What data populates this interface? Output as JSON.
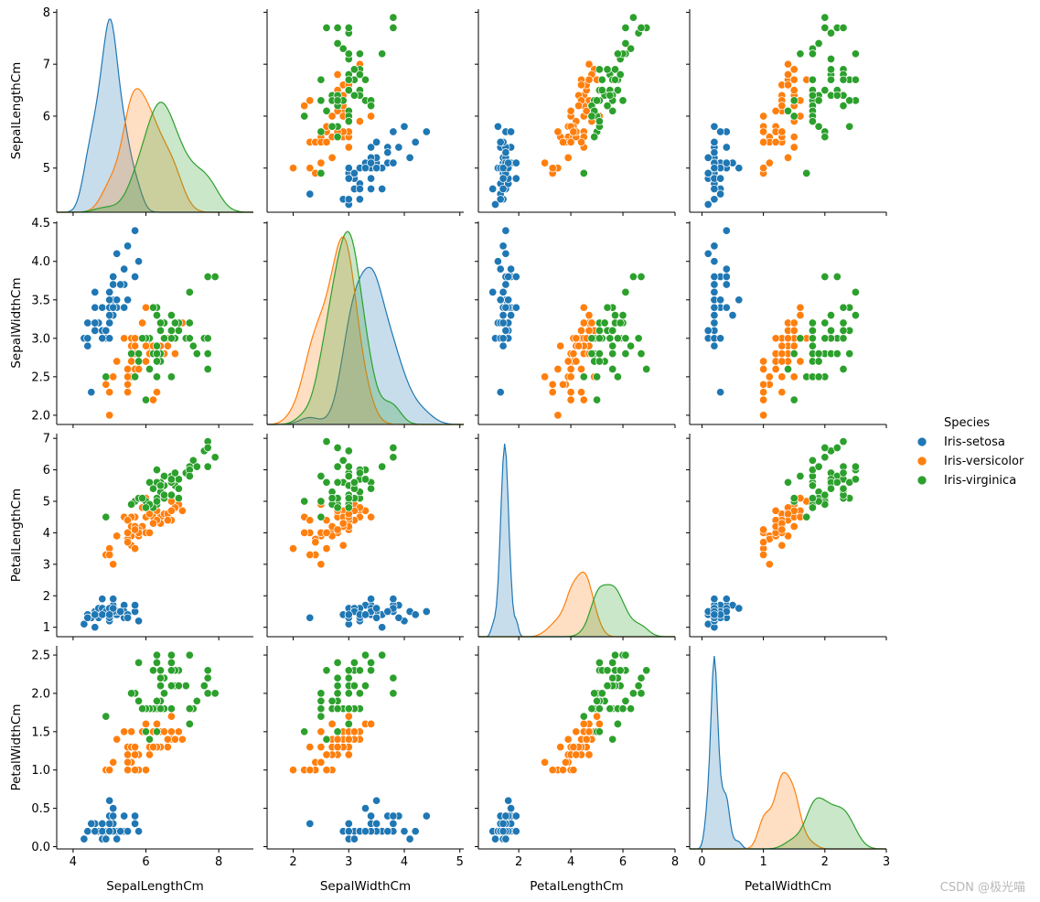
{
  "chart_data": {
    "type": "pairplot",
    "variables": [
      "SepalLengthCm",
      "SepalWidthCm",
      "PetalLengthCm",
      "PetalWidthCm"
    ],
    "var_labels": [
      "SepalLengthCm",
      "SepalWidthCm",
      "PetalLengthCm",
      "PetalWidthCm"
    ],
    "hue": "Species",
    "legend": {
      "title": "Species",
      "position": "right",
      "entries": [
        {
          "label": "Iris-setosa",
          "color": "#1f77b4"
        },
        {
          "label": "Iris-versicolor",
          "color": "#ff7f0e"
        },
        {
          "label": "Iris-virginica",
          "color": "#2ca02c"
        }
      ]
    },
    "x_ticks": [
      [
        "4",
        "6",
        "8"
      ],
      [
        "2",
        "3",
        "4",
        "5"
      ],
      [
        "2",
        "4",
        "6",
        "8"
      ],
      [
        "0",
        "1",
        "2",
        "3"
      ]
    ],
    "y_ticks": [
      [
        "5",
        "6",
        "7",
        "8"
      ],
      [
        "2.0",
        "2.5",
        "3.0",
        "3.5",
        "4.0",
        "4.5"
      ],
      [
        "1",
        "2",
        "3",
        "4",
        "5",
        "6",
        "7"
      ],
      [
        "0.0",
        "0.5",
        "1.0",
        "1.5",
        "2.0",
        "2.5"
      ]
    ],
    "ranges": [
      [
        3.55,
        8.95
      ],
      [
        1.53,
        5.07
      ],
      [
        0.45,
        8.0
      ],
      [
        -0.2,
        3.0
      ]
    ],
    "y_ranges": [
      [
        4.15,
        8.06
      ],
      [
        1.88,
        4.52
      ],
      [
        0.7,
        7.15
      ],
      [
        -0.03,
        2.62
      ]
    ],
    "diag_peaks": [
      [
        {
          "species": "Iris-setosa",
          "mode": 5.0,
          "peak_fraction": 1.0
        },
        {
          "species": "Iris-versicolor",
          "mode": 5.8,
          "peak_fraction": 0.76
        },
        {
          "species": "Iris-virginica",
          "mode": 6.45,
          "peak_fraction": 0.72
        }
      ],
      [
        {
          "species": "Iris-setosa",
          "mode": 3.4,
          "peak_fraction": 0.85
        },
        {
          "species": "Iris-versicolor",
          "mode": 2.9,
          "peak_fraction": 0.97
        },
        {
          "species": "Iris-virginica",
          "mode": 3.0,
          "peak_fraction": 1.0
        }
      ],
      [
        {
          "species": "Iris-setosa",
          "mode": 1.45,
          "peak_fraction": 1.0
        },
        {
          "species": "Iris-versicolor",
          "mode": 4.45,
          "peak_fraction": 0.28
        },
        {
          "species": "Iris-virginica",
          "mode": 5.45,
          "peak_fraction": 0.24
        }
      ],
      [
        {
          "species": "Iris-setosa",
          "mode": 0.22,
          "peak_fraction": 1.0
        },
        {
          "species": "Iris-versicolor",
          "mode": 1.3,
          "peak_fraction": 0.38
        },
        {
          "species": "Iris-virginica",
          "mode": 2.0,
          "peak_fraction": 0.27
        }
      ]
    ],
    "data": {
      "Iris-setosa": [
        [
          5.1,
          3.5,
          1.4,
          0.2
        ],
        [
          4.9,
          3.0,
          1.4,
          0.2
        ],
        [
          4.7,
          3.2,
          1.3,
          0.2
        ],
        [
          4.6,
          3.1,
          1.5,
          0.2
        ],
        [
          5.0,
          3.6,
          1.4,
          0.2
        ],
        [
          5.4,
          3.9,
          1.7,
          0.4
        ],
        [
          4.6,
          3.4,
          1.4,
          0.3
        ],
        [
          5.0,
          3.4,
          1.5,
          0.2
        ],
        [
          4.4,
          2.9,
          1.4,
          0.2
        ],
        [
          4.9,
          3.1,
          1.5,
          0.1
        ],
        [
          5.4,
          3.7,
          1.5,
          0.2
        ],
        [
          4.8,
          3.4,
          1.6,
          0.2
        ],
        [
          4.8,
          3.0,
          1.4,
          0.1
        ],
        [
          4.3,
          3.0,
          1.1,
          0.1
        ],
        [
          5.8,
          4.0,
          1.2,
          0.2
        ],
        [
          5.7,
          4.4,
          1.5,
          0.4
        ],
        [
          5.4,
          3.9,
          1.3,
          0.4
        ],
        [
          5.1,
          3.5,
          1.4,
          0.3
        ],
        [
          5.7,
          3.8,
          1.7,
          0.3
        ],
        [
          5.1,
          3.8,
          1.5,
          0.3
        ],
        [
          5.4,
          3.4,
          1.7,
          0.2
        ],
        [
          5.1,
          3.7,
          1.5,
          0.4
        ],
        [
          4.6,
          3.6,
          1.0,
          0.2
        ],
        [
          5.1,
          3.3,
          1.7,
          0.5
        ],
        [
          4.8,
          3.4,
          1.9,
          0.2
        ],
        [
          5.0,
          3.0,
          1.6,
          0.2
        ],
        [
          5.0,
          3.4,
          1.6,
          0.4
        ],
        [
          5.2,
          3.5,
          1.5,
          0.2
        ],
        [
          5.2,
          3.4,
          1.4,
          0.2
        ],
        [
          4.7,
          3.2,
          1.6,
          0.2
        ],
        [
          4.8,
          3.1,
          1.6,
          0.2
        ],
        [
          5.4,
          3.4,
          1.5,
          0.4
        ],
        [
          5.2,
          4.1,
          1.5,
          0.1
        ],
        [
          5.5,
          4.2,
          1.4,
          0.2
        ],
        [
          4.9,
          3.1,
          1.5,
          0.1
        ],
        [
          5.0,
          3.2,
          1.2,
          0.2
        ],
        [
          5.5,
          3.5,
          1.3,
          0.2
        ],
        [
          4.9,
          3.1,
          1.5,
          0.1
        ],
        [
          4.4,
          3.0,
          1.3,
          0.2
        ],
        [
          5.1,
          3.4,
          1.5,
          0.2
        ],
        [
          5.0,
          3.5,
          1.3,
          0.3
        ],
        [
          4.5,
          2.3,
          1.3,
          0.3
        ],
        [
          4.4,
          3.2,
          1.3,
          0.2
        ],
        [
          5.0,
          3.5,
          1.6,
          0.6
        ],
        [
          5.1,
          3.8,
          1.9,
          0.4
        ],
        [
          4.8,
          3.0,
          1.4,
          0.3
        ],
        [
          5.1,
          3.8,
          1.6,
          0.2
        ],
        [
          4.6,
          3.2,
          1.4,
          0.2
        ],
        [
          5.3,
          3.7,
          1.5,
          0.2
        ],
        [
          5.0,
          3.3,
          1.4,
          0.2
        ]
      ],
      "Iris-versicolor": [
        [
          7.0,
          3.2,
          4.7,
          1.4
        ],
        [
          6.4,
          3.2,
          4.5,
          1.5
        ],
        [
          6.9,
          3.1,
          4.9,
          1.5
        ],
        [
          5.5,
          2.3,
          4.0,
          1.3
        ],
        [
          6.5,
          2.8,
          4.6,
          1.5
        ],
        [
          5.7,
          2.8,
          4.5,
          1.3
        ],
        [
          6.3,
          3.3,
          4.7,
          1.6
        ],
        [
          4.9,
          2.4,
          3.3,
          1.0
        ],
        [
          6.6,
          2.9,
          4.6,
          1.3
        ],
        [
          5.2,
          2.7,
          3.9,
          1.4
        ],
        [
          5.0,
          2.0,
          3.5,
          1.0
        ],
        [
          5.9,
          3.0,
          4.2,
          1.5
        ],
        [
          6.0,
          2.2,
          4.0,
          1.0
        ],
        [
          6.1,
          2.9,
          4.7,
          1.4
        ],
        [
          5.6,
          2.9,
          3.6,
          1.3
        ],
        [
          6.7,
          3.1,
          4.4,
          1.4
        ],
        [
          5.6,
          3.0,
          4.5,
          1.5
        ],
        [
          5.8,
          2.7,
          4.1,
          1.0
        ],
        [
          6.2,
          2.2,
          4.5,
          1.5
        ],
        [
          5.6,
          2.5,
          3.9,
          1.1
        ],
        [
          5.9,
          3.2,
          4.8,
          1.8
        ],
        [
          6.1,
          2.8,
          4.0,
          1.3
        ],
        [
          6.3,
          2.5,
          4.9,
          1.5
        ],
        [
          6.1,
          2.8,
          4.7,
          1.2
        ],
        [
          6.4,
          2.9,
          4.3,
          1.3
        ],
        [
          6.6,
          3.0,
          4.4,
          1.4
        ],
        [
          6.8,
          2.8,
          4.8,
          1.4
        ],
        [
          6.7,
          3.0,
          5.0,
          1.7
        ],
        [
          6.0,
          2.9,
          4.5,
          1.5
        ],
        [
          5.7,
          2.6,
          3.5,
          1.0
        ],
        [
          5.5,
          2.4,
          3.8,
          1.1
        ],
        [
          5.5,
          2.4,
          3.7,
          1.0
        ],
        [
          5.8,
          2.7,
          3.9,
          1.2
        ],
        [
          6.0,
          2.7,
          5.1,
          1.6
        ],
        [
          5.4,
          3.0,
          4.5,
          1.5
        ],
        [
          6.0,
          3.4,
          4.5,
          1.6
        ],
        [
          6.7,
          3.1,
          4.7,
          1.5
        ],
        [
          6.3,
          2.3,
          4.4,
          1.3
        ],
        [
          5.6,
          3.0,
          4.1,
          1.3
        ],
        [
          5.5,
          2.5,
          4.0,
          1.3
        ],
        [
          5.5,
          2.6,
          4.4,
          1.2
        ],
        [
          6.1,
          3.0,
          4.6,
          1.4
        ],
        [
          5.8,
          2.6,
          4.0,
          1.2
        ],
        [
          5.0,
          2.3,
          3.3,
          1.0
        ],
        [
          5.6,
          2.7,
          4.2,
          1.3
        ],
        [
          5.7,
          3.0,
          4.2,
          1.2
        ],
        [
          5.7,
          2.9,
          4.2,
          1.3
        ],
        [
          6.2,
          2.9,
          4.3,
          1.3
        ],
        [
          5.1,
          2.5,
          3.0,
          1.1
        ],
        [
          5.7,
          2.8,
          4.1,
          1.3
        ]
      ],
      "Iris-virginica": [
        [
          6.3,
          3.3,
          6.0,
          2.5
        ],
        [
          5.8,
          2.7,
          5.1,
          1.9
        ],
        [
          7.1,
          3.0,
          5.9,
          2.1
        ],
        [
          6.3,
          2.9,
          5.6,
          1.8
        ],
        [
          6.5,
          3.0,
          5.8,
          2.2
        ],
        [
          7.6,
          3.0,
          6.6,
          2.1
        ],
        [
          4.9,
          2.5,
          4.5,
          1.7
        ],
        [
          7.3,
          2.9,
          6.3,
          1.8
        ],
        [
          6.7,
          2.5,
          5.8,
          1.8
        ],
        [
          7.2,
          3.6,
          6.1,
          2.5
        ],
        [
          6.5,
          3.2,
          5.1,
          2.0
        ],
        [
          6.4,
          2.7,
          5.3,
          1.9
        ],
        [
          6.8,
          3.0,
          5.5,
          2.1
        ],
        [
          5.7,
          2.5,
          5.0,
          2.0
        ],
        [
          5.8,
          2.8,
          5.1,
          2.4
        ],
        [
          6.4,
          3.2,
          5.3,
          2.3
        ],
        [
          6.5,
          3.0,
          5.5,
          1.8
        ],
        [
          7.7,
          3.8,
          6.7,
          2.2
        ],
        [
          7.7,
          2.6,
          6.9,
          2.3
        ],
        [
          6.0,
          2.2,
          5.0,
          1.5
        ],
        [
          6.9,
          3.2,
          5.7,
          2.3
        ],
        [
          5.6,
          2.8,
          4.9,
          2.0
        ],
        [
          7.7,
          2.8,
          6.7,
          2.0
        ],
        [
          6.3,
          2.7,
          4.9,
          1.8
        ],
        [
          6.7,
          3.3,
          5.7,
          2.1
        ],
        [
          7.2,
          3.2,
          6.0,
          1.8
        ],
        [
          6.2,
          2.8,
          4.8,
          1.8
        ],
        [
          6.1,
          3.0,
          4.9,
          1.8
        ],
        [
          6.4,
          2.8,
          5.6,
          2.1
        ],
        [
          7.2,
          3.0,
          5.8,
          1.6
        ],
        [
          7.4,
          2.8,
          6.1,
          1.9
        ],
        [
          7.9,
          3.8,
          6.4,
          2.0
        ],
        [
          6.4,
          2.8,
          5.6,
          2.2
        ],
        [
          6.3,
          2.8,
          5.1,
          1.5
        ],
        [
          6.1,
          2.6,
          5.6,
          1.4
        ],
        [
          7.7,
          3.0,
          6.1,
          2.3
        ],
        [
          6.3,
          3.4,
          5.6,
          2.4
        ],
        [
          6.4,
          3.1,
          5.5,
          1.8
        ],
        [
          6.0,
          3.0,
          4.8,
          1.8
        ],
        [
          6.9,
          3.1,
          5.4,
          2.1
        ],
        [
          6.7,
          3.1,
          5.6,
          2.4
        ],
        [
          6.9,
          3.1,
          5.1,
          2.3
        ],
        [
          5.8,
          2.7,
          5.1,
          1.9
        ],
        [
          6.8,
          3.2,
          5.9,
          2.3
        ],
        [
          6.7,
          3.3,
          5.7,
          2.5
        ],
        [
          6.7,
          3.0,
          5.2,
          2.3
        ],
        [
          6.3,
          2.5,
          5.0,
          1.9
        ],
        [
          6.5,
          3.0,
          5.2,
          2.0
        ],
        [
          6.2,
          3.4,
          5.4,
          2.3
        ],
        [
          5.9,
          3.0,
          5.1,
          1.8
        ]
      ]
    }
  },
  "watermark": "CSDN @极光喵"
}
